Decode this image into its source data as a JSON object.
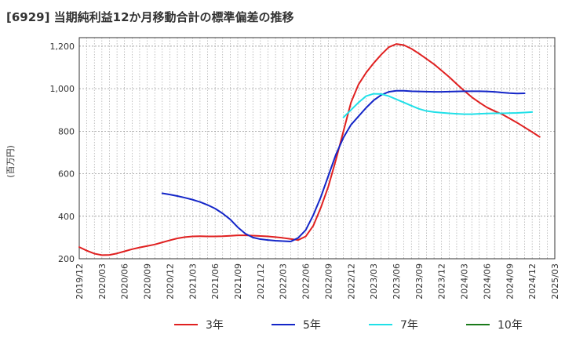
{
  "chart_data": {
    "type": "line",
    "title": "[6929]  当期純利益12か月移動合計の標準偏差の推移",
    "ylabel": "(百万円)",
    "xlabel": "",
    "ylim": [
      200,
      1240
    ],
    "yticks": [
      200,
      400,
      600,
      800,
      1000,
      1200
    ],
    "ytick_labels": [
      "200",
      "400",
      "600",
      "800",
      "1,000",
      "1,200"
    ],
    "xticks": [
      "2019/12",
      "2020/03",
      "2020/06",
      "2020/09",
      "2020/12",
      "2021/03",
      "2021/06",
      "2021/09",
      "2021/12",
      "2022/03",
      "2022/06",
      "2022/09",
      "2022/12",
      "2023/03",
      "2023/06",
      "2023/09",
      "2023/12",
      "2024/03",
      "2024/06",
      "2024/09",
      "2024/12",
      "2025/03"
    ],
    "grid": true,
    "legend_position": "bottom",
    "series": [
      {
        "name": "3年",
        "color": "#e02020",
        "start": "2019/12",
        "values": [
          255,
          238,
          224,
          217,
          218,
          225,
          235,
          245,
          253,
          260,
          267,
          277,
          287,
          296,
          302,
          305,
          306,
          305,
          305,
          306,
          308,
          310,
          310,
          309,
          307,
          305,
          302,
          298,
          293,
          288,
          305,
          355,
          440,
          540,
          665,
          800,
          935,
          1020,
          1075,
          1120,
          1160,
          1195,
          1210,
          1205,
          1188,
          1165,
          1140,
          1115,
          1085,
          1055,
          1022,
          990,
          960,
          935,
          912,
          895,
          880,
          860,
          840,
          818,
          796,
          773
        ]
      },
      {
        "name": "5年",
        "color": "#1426c8",
        "start": "2020/11",
        "values": [
          508,
          502,
          495,
          487,
          478,
          467,
          453,
          436,
          413,
          385,
          348,
          318,
          300,
          292,
          288,
          285,
          283,
          281,
          298,
          335,
          405,
          490,
          590,
          690,
          770,
          830,
          870,
          910,
          945,
          970,
          985,
          990,
          990,
          988,
          987,
          986,
          985,
          985,
          986,
          987,
          988,
          988,
          988,
          987,
          985,
          982,
          979,
          977,
          978
        ]
      },
      {
        "name": "7年",
        "color": "#20e0e8",
        "start": "2022/11",
        "values": [
          865,
          900,
          935,
          965,
          976,
          975,
          965,
          950,
          935,
          920,
          905,
          895,
          890,
          887,
          884,
          882,
          880,
          880,
          882,
          883,
          884,
          884,
          885,
          886,
          888,
          890
        ]
      },
      {
        "name": "10年",
        "color": "#1a7a1a",
        "start": "2019/12",
        "values": []
      }
    ]
  }
}
